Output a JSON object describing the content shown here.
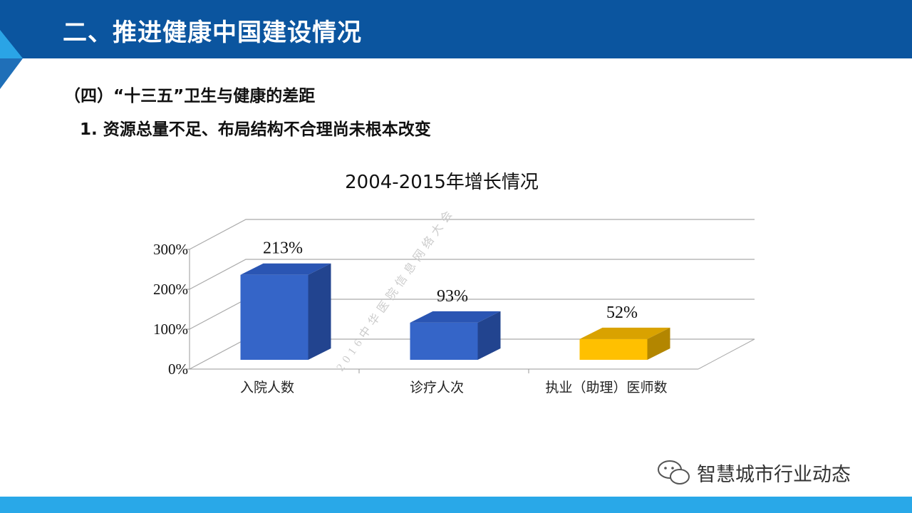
{
  "header": {
    "title": "二、推进健康中国建设情况"
  },
  "section": {
    "heading": "（四）“十三五”卫生与健康的差距",
    "point": "1.  资源总量不足、布局结构不合理尚未根本改变"
  },
  "watermark": "2016中华医院信息网络大会",
  "footer": {
    "brand": "智慧城市行业动态",
    "icon": "wechat-icon"
  },
  "colors": {
    "header": "#0b559f",
    "accent": "#29a8e8",
    "bar_blue": "#3565c8",
    "bar_yellow": "#ffc000"
  },
  "chart_data": {
    "type": "bar",
    "title": "2004-2015年增长情况",
    "categories": [
      "入院人数",
      "诊疗人次",
      "执业（助理）医师数"
    ],
    "values": [
      213,
      93,
      52
    ],
    "value_labels": [
      "213%",
      "93%",
      "52%"
    ],
    "yticks": [
      "0%",
      "100%",
      "200%",
      "300%"
    ],
    "ylim": [
      0,
      300
    ],
    "grid": true,
    "style": "3d"
  }
}
